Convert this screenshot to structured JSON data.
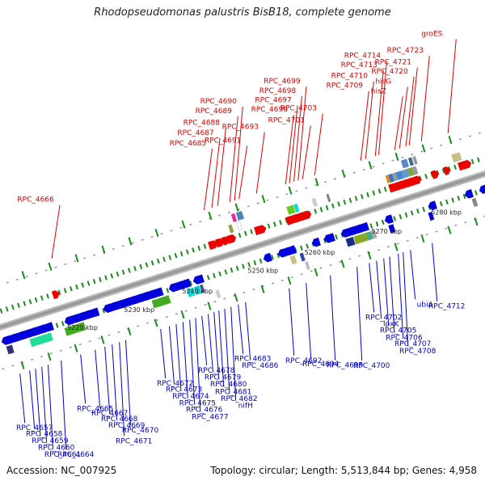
{
  "header": {
    "title": "Rhodopseudomonas palustris BisB18, complete genome"
  },
  "footer": {
    "accession": "Accession: NC_007925",
    "summary": "Topology: circular; Length: 5,513,844 bp; Genes: 4,958"
  },
  "colors": {
    "upper": "#dd0000",
    "lower": "#0000cc",
    "backbone": "#9a9a9a",
    "tick": "#1a8a1a"
  },
  "scale_labels": [
    {
      "text": "5220 kbp",
      "pos": 0.155
    },
    {
      "text": "5230 kbp",
      "pos": 0.272
    },
    {
      "text": "5240 kbp",
      "pos": 0.392
    },
    {
      "text": "5250 kbp",
      "pos": 0.527
    },
    {
      "text": "5260 kbp",
      "pos": 0.644
    },
    {
      "text": "5270 kbp",
      "pos": 0.782
    },
    {
      "text": "5280 kbp",
      "pos": 0.905
    }
  ],
  "upper_labels": [
    {
      "text": "RPC_4666",
      "pos": 0.138
    },
    {
      "text": "RPC_4685",
      "pos": 0.452
    },
    {
      "text": "RPC_4687",
      "pos": 0.468
    },
    {
      "text": "RPC_4688",
      "pos": 0.48
    },
    {
      "text": "RPC_4689",
      "pos": 0.505
    },
    {
      "text": "RPC_4690",
      "pos": 0.515
    },
    {
      "text": "RPC_4691",
      "pos": 0.524
    },
    {
      "text": "RPC_4693",
      "pos": 0.56
    },
    {
      "text": "RPC_4696",
      "pos": 0.62
    },
    {
      "text": "RPC_4697",
      "pos": 0.628
    },
    {
      "text": "RPC_4698",
      "pos": 0.637
    },
    {
      "text": "RPC_4699",
      "pos": 0.646
    },
    {
      "text": "RPC_4701",
      "pos": 0.655
    },
    {
      "text": "RPC_4703",
      "pos": 0.68
    },
    {
      "text": "RPC_4709",
      "pos": 0.775
    },
    {
      "text": "RPC_4710",
      "pos": 0.785
    },
    {
      "text": "RPC_4713",
      "pos": 0.805
    },
    {
      "text": "RPC_4714",
      "pos": 0.812
    },
    {
      "text": "hisZ",
      "pos": 0.845
    },
    {
      "text": "hisG",
      "pos": 0.855
    },
    {
      "text": "RPC_4720",
      "pos": 0.868
    },
    {
      "text": "RPC_4721",
      "pos": 0.875
    },
    {
      "text": "RPC_4723",
      "pos": 0.9
    },
    {
      "text": "groES",
      "pos": 0.955
    }
  ],
  "lower_labels": [
    {
      "text": "RPC_4657",
      "pos": 0.01
    },
    {
      "text": "RPC_4658",
      "pos": 0.03
    },
    {
      "text": "RPC_4659",
      "pos": 0.042
    },
    {
      "text": "RPC_4660",
      "pos": 0.055
    },
    {
      "text": "RPC_4661",
      "pos": 0.068
    },
    {
      "text": "RPC_4664",
      "pos": 0.095
    },
    {
      "text": "RPC_4665",
      "pos": 0.135
    },
    {
      "text": "RPC_4667",
      "pos": 0.165
    },
    {
      "text": "RPC_4668",
      "pos": 0.185
    },
    {
      "text": "RPC_4669",
      "pos": 0.2
    },
    {
      "text": "RPC_4670",
      "pos": 0.228
    },
    {
      "text": "RPC_4671",
      "pos": 0.215
    },
    {
      "text": "RPC_4672",
      "pos": 0.3
    },
    {
      "text": "RPC_4673",
      "pos": 0.318
    },
    {
      "text": "RPC_4674",
      "pos": 0.332
    },
    {
      "text": "RPC_4675",
      "pos": 0.346
    },
    {
      "text": "RPC_4676",
      "pos": 0.36
    },
    {
      "text": "RPC_4677",
      "pos": 0.372
    },
    {
      "text": "RPC_4678",
      "pos": 0.385
    },
    {
      "text": "RPC_4679",
      "pos": 0.398
    },
    {
      "text": "RPC_4680",
      "pos": 0.41
    },
    {
      "text": "RPC_4681",
      "pos": 0.42
    },
    {
      "text": "RPC_4682",
      "pos": 0.432
    },
    {
      "text": "nifH",
      "pos": 0.445
    },
    {
      "text": "RPC_4683",
      "pos": 0.46
    },
    {
      "text": "RPC_4686",
      "pos": 0.475
    },
    {
      "text": "RPC_4692",
      "pos": 0.565
    },
    {
      "text": "RPC_4694",
      "pos": 0.6
    },
    {
      "text": "RPC_4695",
      "pos": 0.65
    },
    {
      "text": "RPC_4700",
      "pos": 0.705
    },
    {
      "text": "RPC_4702",
      "pos": 0.73
    },
    {
      "text": "lpxK",
      "pos": 0.745
    },
    {
      "text": "RPC_4705",
      "pos": 0.76
    },
    {
      "text": "RPC_4706",
      "pos": 0.772
    },
    {
      "text": "RPC_4707",
      "pos": 0.79
    },
    {
      "text": "RPC_4708",
      "pos": 0.8
    },
    {
      "text": "ubiA",
      "pos": 0.815
    },
    {
      "text": "RPC_4712",
      "pos": 0.86
    }
  ],
  "genes": [
    {
      "strand": 1,
      "row": 1,
      "s": 0.118,
      "e": 0.126,
      "c": "#ee0000",
      "a": 1
    },
    {
      "strand": 1,
      "row": 1,
      "s": 0.44,
      "e": 0.452,
      "c": "#ee0000",
      "a": 1
    },
    {
      "strand": 1,
      "row": 1,
      "s": 0.455,
      "e": 0.465,
      "c": "#ee0000",
      "a": 1
    },
    {
      "strand": 1,
      "row": 1,
      "s": 0.468,
      "e": 0.476,
      "c": "#ee0000",
      "a": 1
    },
    {
      "strand": 1,
      "row": 1,
      "s": 0.478,
      "e": 0.49,
      "c": "#ee0000",
      "a": 1
    },
    {
      "strand": 1,
      "row": 2,
      "s": 0.488,
      "e": 0.495,
      "c": "#9aa040",
      "a": 0
    },
    {
      "strand": 1,
      "row": 3,
      "s": 0.5,
      "e": 0.507,
      "c": "#ee22aa",
      "a": 0
    },
    {
      "strand": 1,
      "row": 3,
      "s": 0.51,
      "e": 0.522,
      "c": "#4f86b8",
      "a": 0
    },
    {
      "strand": 1,
      "row": 2,
      "s": 0.505,
      "e": 0.512,
      "c": "#ffffff",
      "a": 0
    },
    {
      "strand": 1,
      "row": 1,
      "s": 0.535,
      "e": 0.552,
      "c": "#ee0000",
      "a": 1
    },
    {
      "strand": 1,
      "row": 1,
      "s": 0.6,
      "e": 0.612,
      "c": "#ee0000",
      "a": 1
    },
    {
      "strand": 1,
      "row": 1,
      "s": 0.613,
      "e": 0.625,
      "c": "#ee0000",
      "a": 1
    },
    {
      "strand": 1,
      "row": 1,
      "s": 0.626,
      "e": 0.635,
      "c": "#ee0000",
      "a": 1
    },
    {
      "strand": 1,
      "row": 1,
      "s": 0.636,
      "e": 0.645,
      "c": "#ee0000",
      "a": 1
    },
    {
      "strand": 1,
      "row": 2,
      "s": 0.608,
      "e": 0.622,
      "c": "#66cc22",
      "a": 0
    },
    {
      "strand": 1,
      "row": 2,
      "s": 0.623,
      "e": 0.63,
      "c": "#00dddd",
      "a": 0
    },
    {
      "strand": 1,
      "row": 2,
      "s": 0.66,
      "e": 0.668,
      "c": "#cccccc",
      "a": 0
    },
    {
      "strand": 1,
      "row": 2,
      "s": 0.69,
      "e": 0.695,
      "c": "#888888",
      "a": 0
    },
    {
      "strand": 1,
      "row": 1,
      "s": 0.812,
      "e": 0.822,
      "c": "#ee0000",
      "a": 1
    },
    {
      "strand": 1,
      "row": 1,
      "s": 0.823,
      "e": 0.832,
      "c": "#ee0000",
      "a": 1
    },
    {
      "strand": 1,
      "row": 1,
      "s": 0.833,
      "e": 0.842,
      "c": "#ee0000",
      "a": 1
    },
    {
      "strand": 1,
      "row": 1,
      "s": 0.843,
      "e": 0.852,
      "c": "#ee0000",
      "a": 1
    },
    {
      "strand": 1,
      "row": 1,
      "s": 0.853,
      "e": 0.862,
      "c": "#ee0000",
      "a": 1
    },
    {
      "strand": 1,
      "row": 1,
      "s": 0.863,
      "e": 0.872,
      "c": "#ee0000",
      "a": 1
    },
    {
      "strand": 1,
      "row": 2,
      "s": 0.812,
      "e": 0.818,
      "c": "#ee8800",
      "a": 0
    },
    {
      "strand": 1,
      "row": 2,
      "s": 0.818,
      "e": 0.826,
      "c": "#3377cc",
      "a": 0
    },
    {
      "strand": 1,
      "row": 2,
      "s": 0.826,
      "e": 0.833,
      "c": "#999999",
      "a": 0
    },
    {
      "strand": 1,
      "row": 2,
      "s": 0.833,
      "e": 0.845,
      "c": "#4488cc",
      "a": 0
    },
    {
      "strand": 1,
      "row": 2,
      "s": 0.845,
      "e": 0.858,
      "c": "#6699cc",
      "a": 0
    },
    {
      "strand": 1,
      "row": 2,
      "s": 0.858,
      "e": 0.866,
      "c": "#77aa33",
      "a": 0
    },
    {
      "strand": 1,
      "row": 2,
      "s": 0.866,
      "e": 0.875,
      "c": "#999999",
      "a": 0
    },
    {
      "strand": 1,
      "row": 3,
      "s": 0.85,
      "e": 0.862,
      "c": "#5a88c0",
      "a": 0
    },
    {
      "strand": 1,
      "row": 3,
      "s": 0.865,
      "e": 0.872,
      "c": "#3a6aa0",
      "a": 0
    },
    {
      "strand": 1,
      "row": 3,
      "s": 0.874,
      "e": 0.88,
      "c": "#999999",
      "a": 0
    },
    {
      "strand": 1,
      "row": 1,
      "s": 0.9,
      "e": 0.908,
      "c": "#ee0000",
      "a": 1
    },
    {
      "strand": 1,
      "row": 1,
      "s": 0.925,
      "e": 0.932,
      "c": "#ee0000",
      "a": 1
    },
    {
      "strand": 1,
      "row": 1,
      "s": 0.955,
      "e": 0.975,
      "c": "#ee0000",
      "a": 1
    },
    {
      "strand": 1,
      "row": 2,
      "s": 0.948,
      "e": 0.965,
      "c": "#c8c080",
      "a": 0
    },
    {
      "strand": -1,
      "row": 1,
      "s": 0.0,
      "e": 0.015,
      "c": "#0000dd",
      "a": -1
    },
    {
      "strand": -1,
      "row": 1,
      "s": 0.016,
      "e": 0.03,
      "c": "#0000dd",
      "a": -1
    },
    {
      "strand": -1,
      "row": 1,
      "s": 0.031,
      "e": 0.044,
      "c": "#0000dd",
      "a": -1
    },
    {
      "strand": -1,
      "row": 1,
      "s": 0.045,
      "e": 0.058,
      "c": "#0000dd",
      "a": -1
    },
    {
      "strand": -1,
      "row": 1,
      "s": 0.059,
      "e": 0.072,
      "c": "#0000dd",
      "a": -1
    },
    {
      "strand": -1,
      "row": 1,
      "s": 0.073,
      "e": 0.086,
      "c": "#0000dd",
      "a": -1
    },
    {
      "strand": -1,
      "row": 1,
      "s": 0.087,
      "e": 0.1,
      "c": "#0000dd",
      "a": -1
    },
    {
      "strand": -1,
      "row": 2,
      "s": 0.0,
      "e": 0.012,
      "c": "#333377",
      "a": 0
    },
    {
      "strand": -1,
      "row": 2,
      "s": 0.048,
      "e": 0.092,
      "c": "#22dd99",
      "a": 0
    },
    {
      "strand": -1,
      "row": 2,
      "s": 0.12,
      "e": 0.16,
      "c": "#44aa22",
      "a": 0
    },
    {
      "strand": -1,
      "row": 1,
      "s": 0.13,
      "e": 0.142,
      "c": "#0000dd",
      "a": -1
    },
    {
      "strand": -1,
      "row": 1,
      "s": 0.143,
      "e": 0.155,
      "c": "#0000dd",
      "a": -1
    },
    {
      "strand": -1,
      "row": 1,
      "s": 0.156,
      "e": 0.168,
      "c": "#0000dd",
      "a": -1
    },
    {
      "strand": -1,
      "row": 1,
      "s": 0.169,
      "e": 0.181,
      "c": "#0000dd",
      "a": -1
    },
    {
      "strand": -1,
      "row": 1,
      "s": 0.182,
      "e": 0.194,
      "c": "#0000dd",
      "a": -1
    },
    {
      "strand": -1,
      "row": 1,
      "s": 0.21,
      "e": 0.222,
      "c": "#0000dd",
      "a": -1
    },
    {
      "strand": -1,
      "row": 1,
      "s": 0.223,
      "e": 0.235,
      "c": "#0000dd",
      "a": -1
    },
    {
      "strand": -1,
      "row": 1,
      "s": 0.236,
      "e": 0.248,
      "c": "#0000dd",
      "a": -1
    },
    {
      "strand": -1,
      "row": 1,
      "s": 0.249,
      "e": 0.261,
      "c": "#0000dd",
      "a": -1
    },
    {
      "strand": -1,
      "row": 1,
      "s": 0.262,
      "e": 0.274,
      "c": "#0000dd",
      "a": -1
    },
    {
      "strand": -1,
      "row": 1,
      "s": 0.275,
      "e": 0.287,
      "c": "#0000dd",
      "a": -1
    },
    {
      "strand": -1,
      "row": 1,
      "s": 0.288,
      "e": 0.3,
      "c": "#0000dd",
      "a": -1
    },
    {
      "strand": -1,
      "row": 1,
      "s": 0.301,
      "e": 0.313,
      "c": "#0000dd",
      "a": -1
    },
    {
      "strand": -1,
      "row": 1,
      "s": 0.314,
      "e": 0.326,
      "c": "#0000dd",
      "a": -1
    },
    {
      "strand": -1,
      "row": 2,
      "s": 0.3,
      "e": 0.335,
      "c": "#44aa22",
      "a": 0
    },
    {
      "strand": -1,
      "row": 1,
      "s": 0.345,
      "e": 0.357,
      "c": "#0000dd",
      "a": -1
    },
    {
      "strand": -1,
      "row": 1,
      "s": 0.358,
      "e": 0.37,
      "c": "#0000dd",
      "a": -1
    },
    {
      "strand": -1,
      "row": 1,
      "s": 0.371,
      "e": 0.383,
      "c": "#0000dd",
      "a": -1
    },
    {
      "strand": -1,
      "row": 2,
      "s": 0.372,
      "e": 0.385,
      "c": "#00dddd",
      "a": 0
    },
    {
      "strand": -1,
      "row": 2,
      "s": 0.387,
      "e": 0.398,
      "c": "#00cccc",
      "a": 0
    },
    {
      "strand": -1,
      "row": 2,
      "s": 0.399,
      "e": 0.405,
      "c": "#445599",
      "a": 0
    },
    {
      "strand": -1,
      "row": 3,
      "s": 0.425,
      "e": 0.432,
      "c": "#cccccc",
      "a": 0
    },
    {
      "strand": -1,
      "row": 1,
      "s": 0.395,
      "e": 0.41,
      "c": "#0000dd",
      "a": -1
    },
    {
      "strand": -1,
      "row": 1,
      "s": 0.54,
      "e": 0.55,
      "c": "#0000dd",
      "a": -1
    },
    {
      "strand": -1,
      "row": 1,
      "s": 0.57,
      "e": 0.58,
      "c": "#0000dd",
      "a": -1
    },
    {
      "strand": -1,
      "row": 1,
      "s": 0.581,
      "e": 0.591,
      "c": "#0000dd",
      "a": -1
    },
    {
      "strand": -1,
      "row": 1,
      "s": 0.592,
      "e": 0.6,
      "c": "#0000dd",
      "a": -1
    },
    {
      "strand": -1,
      "row": 2,
      "s": 0.585,
      "e": 0.595,
      "c": "#c8c080",
      "a": 0
    },
    {
      "strand": -1,
      "row": 2,
      "s": 0.605,
      "e": 0.612,
      "c": "#3344aa",
      "a": 0
    },
    {
      "strand": -1,
      "row": 3,
      "s": 0.61,
      "e": 0.616,
      "c": "#bbbbbb",
      "a": 0
    },
    {
      "strand": -1,
      "row": 1,
      "s": 0.64,
      "e": 0.65,
      "c": "#0000dd",
      "a": -1
    },
    {
      "strand": -1,
      "row": 1,
      "s": 0.665,
      "e": 0.68,
      "c": "#0000dd",
      "a": -1
    },
    {
      "strand": -1,
      "row": 1,
      "s": 0.7,
      "e": 0.712,
      "c": "#0000dd",
      "a": -1
    },
    {
      "strand": -1,
      "row": 1,
      "s": 0.713,
      "e": 0.725,
      "c": "#0000dd",
      "a": -1
    },
    {
      "strand": -1,
      "row": 1,
      "s": 0.726,
      "e": 0.738,
      "c": "#0000dd",
      "a": -1
    },
    {
      "strand": -1,
      "row": 1,
      "s": 0.739,
      "e": 0.75,
      "c": "#0000dd",
      "a": -1
    },
    {
      "strand": -1,
      "row": 2,
      "s": 0.7,
      "e": 0.715,
      "c": "#1a2a88",
      "a": 0
    },
    {
      "strand": -1,
      "row": 2,
      "s": 0.716,
      "e": 0.742,
      "c": "#88aa22",
      "a": 0
    },
    {
      "strand": -1,
      "row": 2,
      "s": 0.742,
      "e": 0.752,
      "c": "#44aa88",
      "a": 0
    },
    {
      "strand": -1,
      "row": 2,
      "s": 0.752,
      "e": 0.76,
      "c": "#aaaaaa",
      "a": 0
    },
    {
      "strand": -1,
      "row": 1,
      "s": 0.79,
      "e": 0.8,
      "c": "#0000dd",
      "a": -1
    },
    {
      "strand": -1,
      "row": 2,
      "s": 0.788,
      "e": 0.798,
      "c": "#0000dd",
      "a": 0
    },
    {
      "strand": -1,
      "row": 1,
      "s": 0.88,
      "e": 0.89,
      "c": "#0000dd",
      "a": -1
    },
    {
      "strand": -1,
      "row": 2,
      "s": 0.87,
      "e": 0.878,
      "c": "#0000dd",
      "a": 0
    },
    {
      "strand": -1,
      "row": 1,
      "s": 0.955,
      "e": 0.965,
      "c": "#0000dd",
      "a": -1
    },
    {
      "strand": -1,
      "row": 2,
      "s": 0.96,
      "e": 0.968,
      "c": "#888888",
      "a": 0
    },
    {
      "strand": -1,
      "row": 1,
      "s": 0.985,
      "e": 0.995,
      "c": "#0000dd",
      "a": -1
    }
  ]
}
